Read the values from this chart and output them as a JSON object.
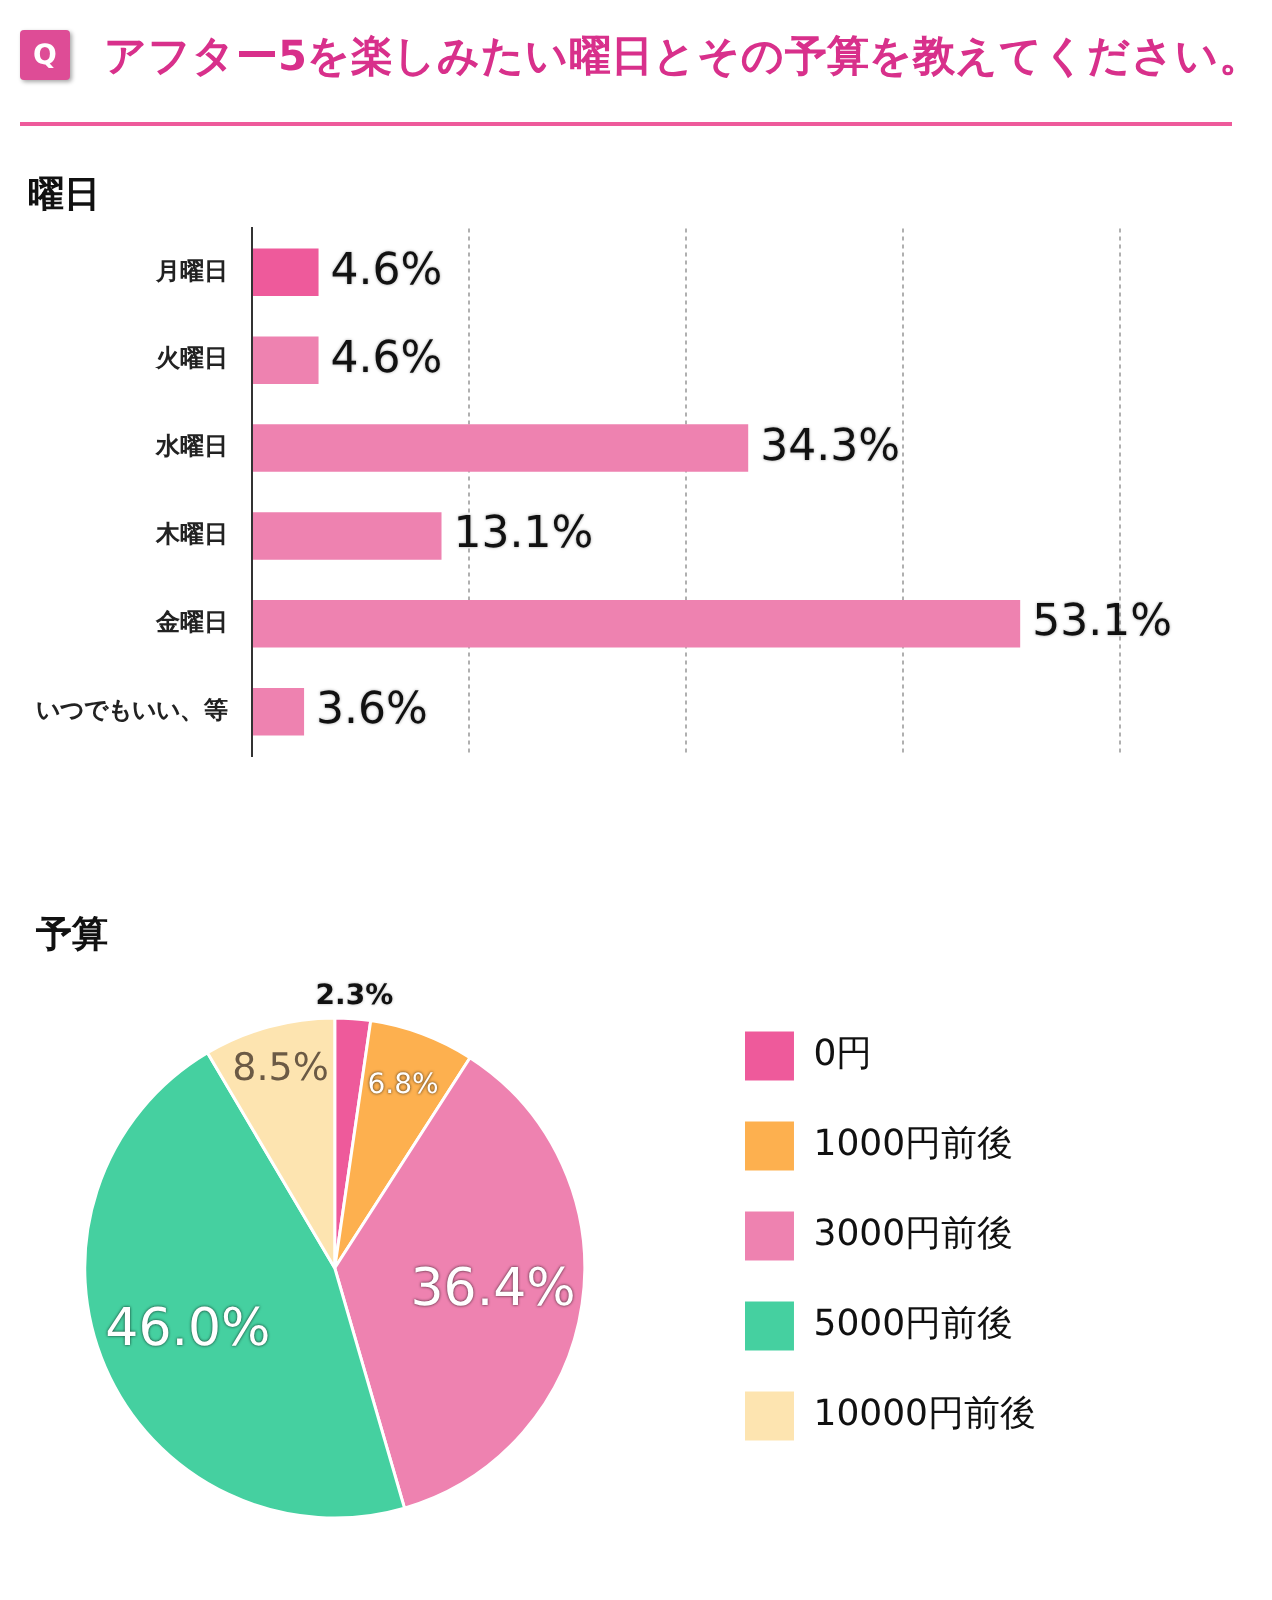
{
  "chart_data": [
    {
      "type": "bar",
      "orientation": "horizontal",
      "title": "アフター5を楽しみたい曜日とその予算を教えてください。",
      "subtitle": "曜日",
      "annotations": [
        "Q"
      ],
      "categories": [
        "月曜日",
        "火曜日",
        "水曜日",
        "木曜日",
        "金曜日",
        "いつでもいい、等"
      ],
      "values": [
        4.6,
        4.6,
        34.3,
        13.1,
        53.1,
        3.6
      ],
      "colors": [
        "#ee5a9b",
        "#ee82b0",
        "#ee82b0",
        "#ee82b0",
        "#ee82b0",
        "#ee82b0"
      ],
      "value_labels": [
        "4.6%",
        "4.6%",
        "34.3%",
        "13.1%",
        "53.1%",
        "3.6%"
      ],
      "xlim": [
        0,
        60
      ],
      "xticks": [
        {
          "value": 0,
          "label": null
        },
        {
          "value": 15,
          "label": null
        },
        {
          "value": 30,
          "label": null
        },
        {
          "value": 45,
          "label": null
        },
        {
          "value": 60,
          "label": null
        }
      ],
      "grid": "x",
      "tick_labels": "y"
    },
    {
      "type": "pie",
      "title": "予算",
      "categories": [
        "0円",
        "1000円前後",
        "3000円前後",
        "5000円前後",
        "10000円前後"
      ],
      "values": [
        2.3,
        6.8,
        36.4,
        46.0,
        8.5
      ],
      "colors": [
        "#ee5a9b",
        "#fdb04f",
        "#ee82b0",
        "#45d0a0",
        "#fde4b0"
      ],
      "value_labels": [
        "2.3%",
        "6.8%",
        "36.4%",
        "46.0%",
        "8.5%"
      ],
      "legend": "right"
    }
  ]
}
